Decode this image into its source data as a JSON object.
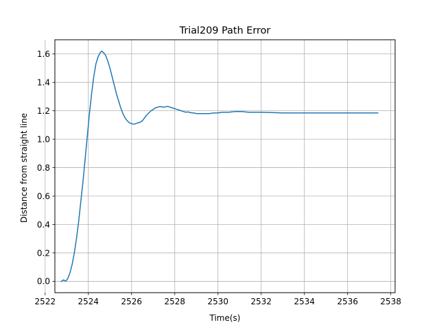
{
  "chart_data": {
    "type": "line",
    "title": "Trial209 Path Error",
    "xlabel": "Time(s)",
    "ylabel": "Distance from straight line",
    "xlim": [
      2522.45,
      2538.2
    ],
    "ylim": [
      -0.08,
      1.7
    ],
    "xticks": [
      2522,
      2524,
      2526,
      2528,
      2530,
      2532,
      2534,
      2536,
      2538
    ],
    "yticks": [
      0.0,
      0.2,
      0.4,
      0.6,
      0.8,
      1.0,
      1.2,
      1.4,
      1.6
    ],
    "xtick_labels": [
      "2522",
      "2524",
      "2526",
      "2528",
      "2530",
      "2532",
      "2534",
      "2536",
      "2538"
    ],
    "ytick_labels": [
      "0.0",
      "0.2",
      "0.4",
      "0.6",
      "0.8",
      "1.0",
      "1.2",
      "1.4",
      "1.6"
    ],
    "grid": true,
    "line_color": "#1f77b4",
    "series": [
      {
        "x": [
          2522.75,
          2522.85,
          2522.95,
          2523.05,
          2523.15,
          2523.25,
          2523.35,
          2523.45,
          2523.55,
          2523.65,
          2523.75,
          2523.85,
          2523.95,
          2524.05,
          2524.15,
          2524.25,
          2524.35,
          2524.45,
          2524.55,
          2524.62,
          2524.7,
          2524.8,
          2524.9,
          2525.0,
          2525.1,
          2525.2,
          2525.3,
          2525.4,
          2525.5,
          2525.6,
          2525.7,
          2525.8,
          2525.9,
          2526.0,
          2526.1,
          2526.2,
          2526.3,
          2526.4,
          2526.5,
          2526.6,
          2526.7,
          2526.8,
          2526.9,
          2527.0,
          2527.1,
          2527.2,
          2527.3,
          2527.4,
          2527.5,
          2527.6,
          2527.7,
          2527.8,
          2527.9,
          2528.0,
          2528.1,
          2528.2,
          2528.3,
          2528.4,
          2528.5,
          2528.6,
          2528.7,
          2528.8,
          2528.9,
          2529.0,
          2529.2,
          2529.4,
          2529.6,
          2529.8,
          2530.0,
          2530.2,
          2530.5,
          2530.8,
          2531.1,
          2531.4,
          2531.7,
          2532.0,
          2533.0,
          2534.0,
          2535.0,
          2536.0,
          2537.0,
          2537.4
        ],
        "y": [
          0.0,
          0.01,
          0.0,
          0.02,
          0.06,
          0.12,
          0.2,
          0.3,
          0.42,
          0.56,
          0.7,
          0.86,
          1.02,
          1.18,
          1.32,
          1.44,
          1.53,
          1.58,
          1.61,
          1.62,
          1.61,
          1.59,
          1.55,
          1.5,
          1.44,
          1.38,
          1.32,
          1.27,
          1.22,
          1.18,
          1.15,
          1.13,
          1.115,
          1.11,
          1.105,
          1.11,
          1.115,
          1.12,
          1.13,
          1.15,
          1.17,
          1.185,
          1.2,
          1.21,
          1.22,
          1.225,
          1.23,
          1.228,
          1.225,
          1.23,
          1.23,
          1.225,
          1.22,
          1.215,
          1.21,
          1.205,
          1.2,
          1.195,
          1.19,
          1.192,
          1.188,
          1.185,
          1.185,
          1.18,
          1.18,
          1.18,
          1.18,
          1.185,
          1.185,
          1.19,
          1.19,
          1.195,
          1.195,
          1.19,
          1.19,
          1.19,
          1.185,
          1.185,
          1.185,
          1.185,
          1.185,
          1.185
        ]
      }
    ]
  }
}
